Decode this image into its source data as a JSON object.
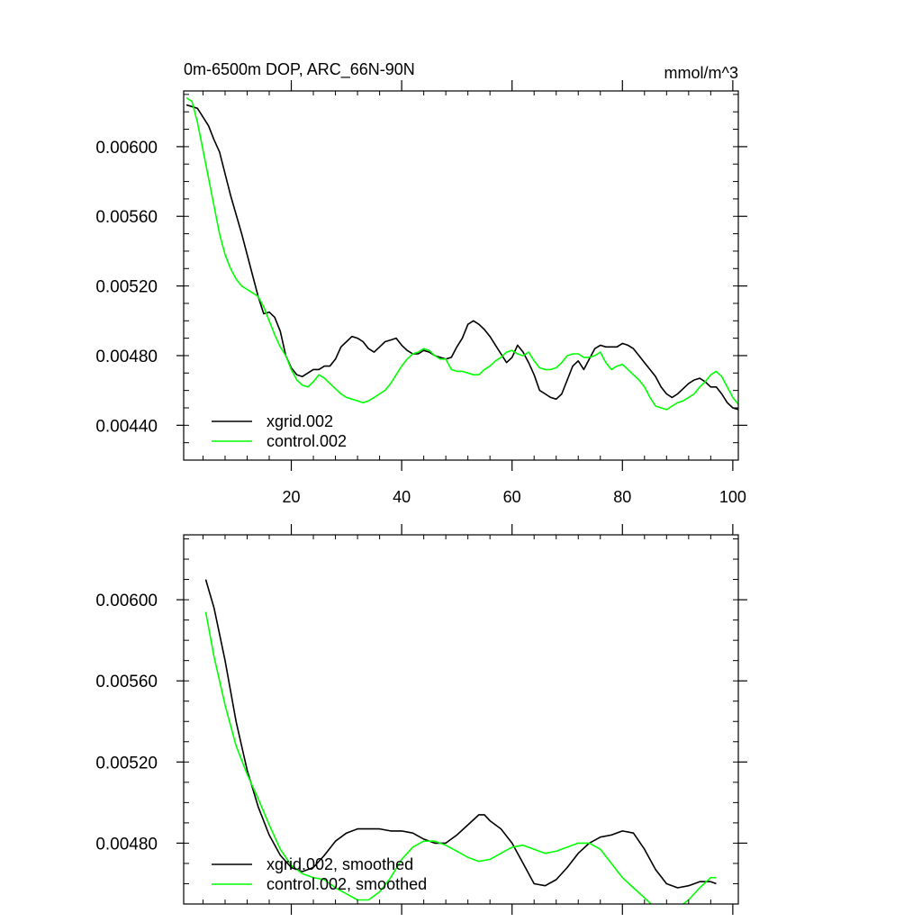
{
  "chart_data": [
    {
      "type": "line",
      "title": "0m-6500m DOP, ARC_66N-90N",
      "units": "mmol/m^3",
      "xlim": [
        0.5,
        101
      ],
      "ylim": [
        0.0042,
        0.00632
      ],
      "xticks": [
        20,
        40,
        60,
        80,
        100
      ],
      "xtick_labels": [
        "20",
        "40",
        "60",
        "80",
        "100"
      ],
      "yticks": [
        0.0044,
        0.0048,
        0.0052,
        0.0056,
        0.006
      ],
      "ytick_labels": [
        "0.00440",
        "0.00480",
        "0.00520",
        "0.00560",
        "0.00600"
      ],
      "legend_location": "bottom-left",
      "series": [
        {
          "name": "xgrid.002",
          "color": "#000000",
          "x": [
            1,
            3,
            5,
            6,
            7,
            9,
            11,
            13,
            14,
            15,
            16,
            17,
            18,
            19,
            20,
            21,
            22,
            23,
            24,
            25,
            26,
            27,
            28,
            29,
            30,
            31,
            32,
            33,
            34,
            35,
            36,
            37,
            38,
            39,
            40,
            41,
            42,
            43,
            44,
            45,
            46,
            47,
            48,
            49,
            50,
            51,
            52,
            53,
            54,
            55,
            56,
            57,
            58,
            59,
            60,
            61,
            62,
            63,
            64,
            65,
            66,
            67,
            68,
            69,
            70,
            71,
            72,
            73,
            74,
            75,
            76,
            77,
            78,
            79,
            80,
            81,
            82,
            83,
            84,
            85,
            86,
            87,
            88,
            89,
            90,
            91,
            92,
            93,
            94,
            95,
            96,
            97,
            98,
            99,
            100,
            101
          ],
          "y": [
            0.00624,
            0.00622,
            0.00612,
            0.00604,
            0.00597,
            0.00572,
            0.0055,
            0.00526,
            0.00514,
            0.00504,
            0.00505,
            0.00502,
            0.00494,
            0.0048,
            0.00473,
            0.00469,
            0.00468,
            0.0047,
            0.00472,
            0.00472,
            0.00474,
            0.00474,
            0.00478,
            0.00485,
            0.00488,
            0.00491,
            0.0049,
            0.00488,
            0.00484,
            0.00482,
            0.00485,
            0.00488,
            0.00489,
            0.0049,
            0.00486,
            0.00483,
            0.00481,
            0.00481,
            0.00483,
            0.00482,
            0.0048,
            0.00479,
            0.00478,
            0.00479,
            0.00485,
            0.0049,
            0.00498,
            0.005,
            0.00498,
            0.00495,
            0.00491,
            0.00486,
            0.00481,
            0.00476,
            0.00479,
            0.00486,
            0.00482,
            0.00476,
            0.00469,
            0.0046,
            0.00458,
            0.00456,
            0.00455,
            0.00458,
            0.00466,
            0.00474,
            0.00477,
            0.00472,
            0.00478,
            0.00484,
            0.00486,
            0.00485,
            0.00485,
            0.00485,
            0.00487,
            0.00486,
            0.00484,
            0.0048,
            0.00476,
            0.00472,
            0.00468,
            0.00462,
            0.00458,
            0.00456,
            0.00458,
            0.00461,
            0.00464,
            0.00466,
            0.00467,
            0.00465,
            0.00462,
            0.00462,
            0.00458,
            0.00453,
            0.0045,
            0.00449
          ]
        },
        {
          "name": "control.002",
          "color": "#00ff00",
          "x": [
            1,
            2,
            3,
            4,
            5,
            6,
            7,
            8,
            9,
            10,
            11,
            12,
            13,
            14,
            15,
            16,
            17,
            18,
            19,
            20,
            21,
            22,
            23,
            24,
            25,
            26,
            27,
            28,
            29,
            30,
            31,
            32,
            33,
            34,
            35,
            36,
            37,
            38,
            39,
            40,
            41,
            42,
            43,
            44,
            45,
            46,
            47,
            48,
            49,
            50,
            51,
            52,
            53,
            54,
            55,
            56,
            57,
            58,
            59,
            60,
            61,
            62,
            63,
            64,
            65,
            66,
            67,
            68,
            69,
            70,
            71,
            72,
            73,
            74,
            75,
            76,
            77,
            78,
            79,
            80,
            81,
            82,
            83,
            84,
            85,
            86,
            87,
            88,
            89,
            90,
            91,
            92,
            93,
            94,
            95,
            96,
            97,
            98,
            99,
            100,
            101
          ],
          "y": [
            0.00628,
            0.00626,
            0.00614,
            0.00598,
            0.00582,
            0.00566,
            0.0055,
            0.00538,
            0.0053,
            0.00524,
            0.0052,
            0.00518,
            0.00516,
            0.00514,
            0.00508,
            0.005,
            0.00492,
            0.00485,
            0.0048,
            0.00472,
            0.00466,
            0.00463,
            0.00462,
            0.00465,
            0.00469,
            0.00467,
            0.00464,
            0.00461,
            0.00458,
            0.00456,
            0.00455,
            0.00454,
            0.00453,
            0.00454,
            0.00456,
            0.00458,
            0.0046,
            0.00464,
            0.00469,
            0.00474,
            0.00478,
            0.00481,
            0.00482,
            0.00484,
            0.00483,
            0.0048,
            0.00478,
            0.00478,
            0.00472,
            0.00471,
            0.00471,
            0.0047,
            0.00469,
            0.00469,
            0.00472,
            0.00474,
            0.00477,
            0.00479,
            0.00482,
            0.00483,
            0.00481,
            0.0048,
            0.00482,
            0.00477,
            0.00473,
            0.00472,
            0.00472,
            0.00473,
            0.00476,
            0.0048,
            0.00481,
            0.00481,
            0.00479,
            0.00479,
            0.0048,
            0.00482,
            0.00476,
            0.00472,
            0.00474,
            0.00475,
            0.00472,
            0.00469,
            0.00466,
            0.00462,
            0.00456,
            0.00451,
            0.0045,
            0.00449,
            0.00451,
            0.00453,
            0.00454,
            0.00456,
            0.00458,
            0.00462,
            0.00465,
            0.00469,
            0.00471,
            0.00468,
            0.00462,
            0.00456,
            0.00452
          ]
        }
      ]
    },
    {
      "type": "line",
      "title": "",
      "xlim": [
        0.5,
        101
      ],
      "ylim": [
        0.0045,
        0.00632
      ],
      "xticks": [
        20,
        40,
        60,
        80,
        100
      ],
      "xtick_labels": [],
      "yticks": [
        0.0048,
        0.0052,
        0.0056,
        0.006
      ],
      "ytick_labels": [
        "0.00480",
        "0.00520",
        "0.00560",
        "0.00600"
      ],
      "legend_location": "bottom-left",
      "series": [
        {
          "name": "xgrid.002, smoothed",
          "color": "#000000",
          "x": [
            4.5,
            6,
            8,
            10,
            12,
            14,
            16,
            18,
            20,
            22,
            24,
            26,
            28,
            30,
            32,
            34,
            36,
            38,
            40,
            42,
            44,
            46,
            48,
            50,
            52,
            54,
            55,
            56,
            58,
            60,
            62,
            64,
            66,
            68,
            70,
            72,
            74,
            76,
            78,
            80,
            82,
            84,
            86,
            88,
            90,
            92,
            94,
            96,
            97
          ],
          "y": [
            0.0061,
            0.00596,
            0.0057,
            0.0054,
            0.00516,
            0.00498,
            0.00484,
            0.00474,
            0.00468,
            0.00466,
            0.00468,
            0.00474,
            0.00481,
            0.00485,
            0.00487,
            0.00487,
            0.00487,
            0.00486,
            0.00486,
            0.00485,
            0.00482,
            0.0048,
            0.0048,
            0.00484,
            0.00489,
            0.00494,
            0.00494,
            0.00491,
            0.00487,
            0.0048,
            0.0047,
            0.0046,
            0.00459,
            0.00462,
            0.00468,
            0.00475,
            0.0048,
            0.00483,
            0.00484,
            0.00486,
            0.00485,
            0.00477,
            0.00467,
            0.0046,
            0.00458,
            0.00459,
            0.00461,
            0.00461,
            0.0046
          ]
        },
        {
          "name": "control.002, smoothed",
          "color": "#00ff00",
          "x": [
            4.5,
            6,
            8,
            10,
            12,
            14,
            16,
            18,
            20,
            22,
            24,
            26,
            28,
            30,
            32,
            34,
            36,
            38,
            40,
            42,
            44,
            46,
            48,
            50,
            52,
            54,
            56,
            58,
            60,
            62,
            64,
            66,
            68,
            70,
            72,
            74,
            76,
            78,
            80,
            82,
            84,
            86,
            88,
            90,
            92,
            94,
            96,
            97
          ],
          "y": [
            0.00594,
            0.00572,
            0.00548,
            0.00528,
            0.00514,
            0.00502,
            0.00489,
            0.00477,
            0.00469,
            0.00465,
            0.00463,
            0.00462,
            0.00458,
            0.00455,
            0.00452,
            0.00452,
            0.00456,
            0.00463,
            0.00472,
            0.00478,
            0.00481,
            0.00481,
            0.00479,
            0.00476,
            0.00473,
            0.00471,
            0.00472,
            0.00475,
            0.00478,
            0.00479,
            0.00477,
            0.00475,
            0.00476,
            0.00478,
            0.0048,
            0.0048,
            0.00477,
            0.0047,
            0.00463,
            0.00458,
            0.00453,
            0.00448,
            0.00446,
            0.00448,
            0.00452,
            0.00458,
            0.00463,
            0.00463
          ]
        }
      ]
    }
  ]
}
